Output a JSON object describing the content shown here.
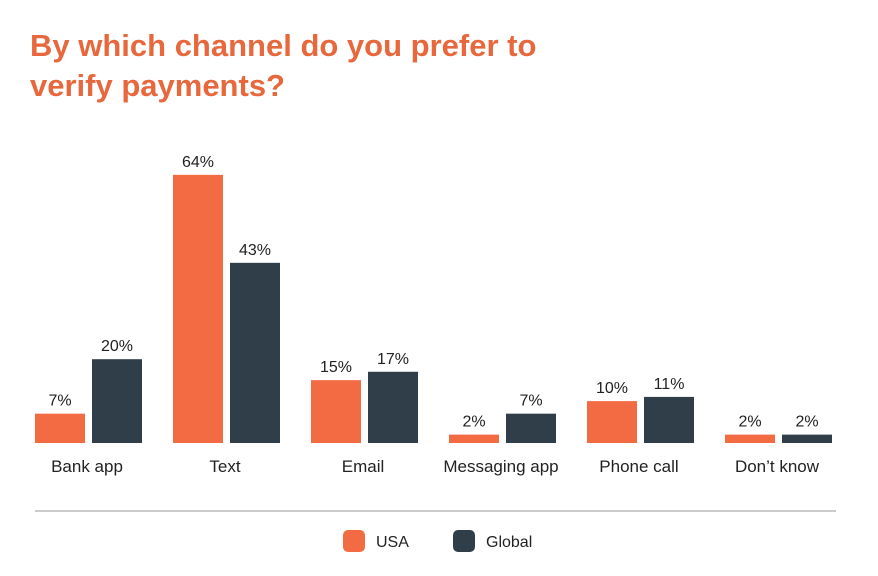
{
  "chart_data": {
    "type": "bar",
    "title": "By which channel do you prefer to verify payments?",
    "categories": [
      "Bank app",
      "Text",
      "Email",
      "Messaging app",
      "Phone call",
      "Don’t know"
    ],
    "series": [
      {
        "name": "USA",
        "color": "#f26b43",
        "values": [
          7,
          64,
          15,
          2,
          10,
          2
        ],
        "value_labels": [
          "7%",
          "64%",
          "15%",
          "2%",
          "10%",
          "2%"
        ]
      },
      {
        "name": "Global",
        "color": "#2f3e48",
        "values": [
          20,
          43,
          17,
          7,
          11,
          2
        ],
        "value_labels": [
          "20%",
          "43%",
          "17%",
          "7%",
          "11%",
          "2%"
        ]
      }
    ],
    "legend": "bottom"
  }
}
